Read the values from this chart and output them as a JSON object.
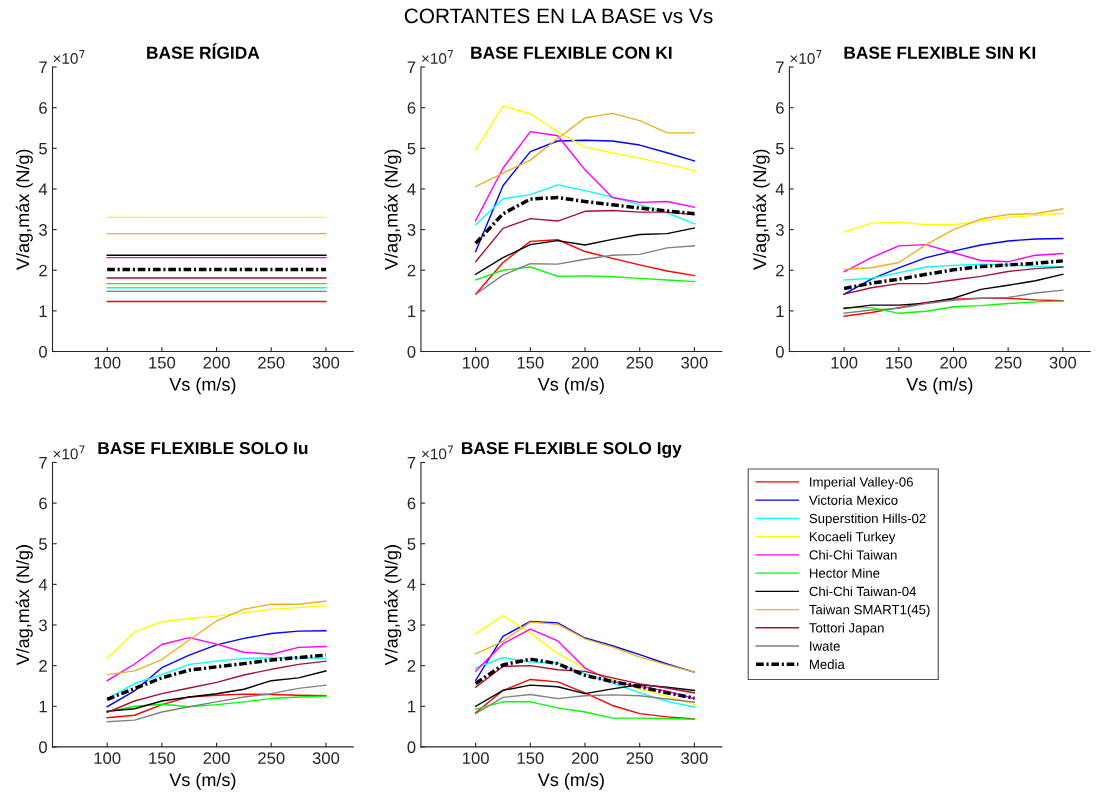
{
  "chart_data": [
    {
      "type": "line",
      "title": "BASE RÍGIDA",
      "annotations": [
        "CORTANTES EN LA BASE vs Vs",
        "×10$^{7}$"
      ],
      "xlabel": "Vs (m/s)",
      "ylabel": "V/ag,máx (N/g)",
      "x": [
        100,
        125,
        150,
        175,
        200,
        225,
        250,
        275,
        300
      ],
      "xlim": [
        50,
        325
      ],
      "xticks": [
        100,
        150,
        200,
        250,
        300
      ],
      "ylim": [
        0,
        7
      ],
      "yticks": [
        0,
        1,
        2,
        3,
        4,
        5,
        6,
        7
      ],
      "grid": false,
      "legend": false,
      "series": [
        {
          "color": "#ff0000",
          "values": [
            1.23,
            1.23,
            1.23,
            1.23,
            1.23,
            1.23,
            1.23,
            1.23,
            1.23
          ]
        },
        {
          "color": "#0000ff",
          "values": [
            null,
            null,
            null,
            null,
            null,
            null,
            null,
            null,
            null
          ]
        },
        {
          "color": "#00ffff",
          "values": [
            1.57,
            1.57,
            1.57,
            1.57,
            1.57,
            1.57,
            1.57,
            1.57,
            1.57
          ]
        },
        {
          "color": "#ffff00",
          "values": [
            3.3,
            3.3,
            3.3,
            3.3,
            3.3,
            3.3,
            3.3,
            3.3,
            3.3
          ]
        },
        {
          "color": "#ff00ff",
          "values": [
            2.31,
            2.31,
            2.31,
            2.31,
            2.31,
            2.31,
            2.31,
            2.31,
            2.31
          ]
        },
        {
          "color": "#00ff00",
          "values": [
            1.67,
            1.67,
            1.67,
            1.67,
            1.67,
            1.67,
            1.67,
            1.67,
            1.67
          ]
        },
        {
          "color": "#000000",
          "values": [
            2.37,
            2.37,
            2.37,
            2.37,
            2.37,
            2.37,
            2.37,
            2.37,
            2.37
          ]
        },
        {
          "color": "#edb120",
          "values": [
            2.9,
            2.9,
            2.9,
            2.9,
            2.9,
            2.9,
            2.9,
            2.9,
            2.9
          ]
        },
        {
          "color": "#a2142f",
          "values": [
            1.81,
            1.81,
            1.81,
            1.81,
            1.81,
            1.81,
            1.81,
            1.81,
            1.81
          ]
        },
        {
          "color": "#808080",
          "values": [
            1.48,
            1.48,
            1.48,
            1.48,
            1.48,
            1.48,
            1.48,
            1.48,
            1.48
          ]
        },
        {
          "color": "#000000",
          "line_style": "dashdot",
          "values": [
            2.02,
            2.02,
            2.02,
            2.02,
            2.02,
            2.02,
            2.02,
            2.02,
            2.02
          ]
        }
      ]
    },
    {
      "type": "line",
      "title": "BASE FLEXIBLE CON KI",
      "annotations": [
        "×10$^{7}$"
      ],
      "xlabel": "Vs (m/s)",
      "ylabel": "V/ag,máx (N/g)",
      "x": [
        100,
        125,
        150,
        175,
        200,
        225,
        250,
        275,
        300
      ],
      "xlim": [
        50,
        325
      ],
      "xticks": [
        100,
        150,
        200,
        250,
        300
      ],
      "ylim": [
        0,
        7
      ],
      "yticks": [
        0,
        1,
        2,
        3,
        4,
        5,
        6,
        7
      ],
      "grid": false,
      "legend": false,
      "series": [
        {
          "color": "#ff0000",
          "values": [
            1.41,
            2.19,
            2.71,
            2.75,
            2.46,
            2.29,
            2.13,
            1.98,
            1.87
          ]
        },
        {
          "color": "#0000ff",
          "values": [
            2.46,
            4.08,
            4.92,
            5.18,
            5.2,
            5.18,
            5.08,
            4.89,
            4.69
          ]
        },
        {
          "color": "#00ffff",
          "values": [
            3.12,
            3.76,
            3.86,
            4.1,
            3.96,
            3.8,
            3.61,
            3.41,
            3.14
          ]
        },
        {
          "color": "#ffff00",
          "values": [
            4.96,
            6.04,
            5.85,
            5.41,
            5.03,
            4.89,
            4.76,
            4.61,
            4.45
          ]
        },
        {
          "color": "#ff00ff",
          "values": [
            3.22,
            4.51,
            5.41,
            5.31,
            4.47,
            3.79,
            3.67,
            3.69,
            3.55
          ]
        },
        {
          "color": "#00ff00",
          "values": [
            1.76,
            2.0,
            2.08,
            1.85,
            1.86,
            1.84,
            1.8,
            1.76,
            1.72
          ]
        },
        {
          "color": "#000000",
          "values": [
            1.9,
            2.31,
            2.63,
            2.73,
            2.62,
            2.76,
            2.88,
            2.9,
            3.04
          ]
        },
        {
          "color": "#edb120",
          "values": [
            4.06,
            4.39,
            4.71,
            5.24,
            5.75,
            5.86,
            5.68,
            5.38,
            5.38
          ]
        },
        {
          "color": "#a2142f",
          "values": [
            2.21,
            3.03,
            3.27,
            3.21,
            3.45,
            3.47,
            3.43,
            3.43,
            3.37
          ]
        },
        {
          "color": "#808080",
          "values": [
            1.41,
            1.88,
            2.16,
            2.15,
            2.27,
            2.37,
            2.39,
            2.55,
            2.6
          ]
        },
        {
          "color": "#000000",
          "line_style": "dashdot",
          "values": [
            2.66,
            3.39,
            3.75,
            3.79,
            3.69,
            3.61,
            3.53,
            3.46,
            3.39
          ]
        }
      ]
    },
    {
      "type": "line",
      "title": "BASE FLEXIBLE SIN KI",
      "annotations": [
        "×10$^{7}$"
      ],
      "xlabel": "Vs (m/s)",
      "ylabel": "V/ag,máx (N/g)",
      "x": [
        100,
        125,
        150,
        175,
        200,
        225,
        250,
        275,
        300
      ],
      "xlim": [
        50,
        325
      ],
      "xticks": [
        100,
        150,
        200,
        250,
        300
      ],
      "ylim": [
        0,
        7
      ],
      "yticks": [
        0,
        1,
        2,
        3,
        4,
        5,
        6,
        7
      ],
      "grid": false,
      "legend": false,
      "series": [
        {
          "color": "#ff0000",
          "values": [
            0.87,
            0.96,
            1.08,
            1.21,
            1.29,
            1.31,
            1.31,
            1.27,
            1.25
          ]
        },
        {
          "color": "#0000ff",
          "values": [
            1.41,
            1.78,
            2.06,
            2.31,
            2.47,
            2.62,
            2.72,
            2.77,
            2.78
          ]
        },
        {
          "color": "#00ffff",
          "values": [
            1.76,
            1.8,
            1.94,
            2.08,
            2.12,
            2.15,
            2.13,
            2.1,
            2.09
          ]
        },
        {
          "color": "#ffff00",
          "values": [
            2.94,
            3.16,
            3.18,
            3.12,
            3.12,
            3.21,
            3.3,
            3.35,
            3.4
          ]
        },
        {
          "color": "#ff00ff",
          "values": [
            1.96,
            2.31,
            2.6,
            2.63,
            2.43,
            2.24,
            2.21,
            2.37,
            2.41
          ]
        },
        {
          "color": "#00ff00",
          "values": [
            1.08,
            1.08,
            0.94,
            0.99,
            1.1,
            1.13,
            1.18,
            1.22,
            1.24
          ]
        },
        {
          "color": "#000000",
          "values": [
            1.06,
            1.14,
            1.14,
            1.19,
            1.31,
            1.53,
            1.63,
            1.74,
            1.9
          ]
        },
        {
          "color": "#edb120",
          "values": [
            2.02,
            2.06,
            2.19,
            2.63,
            3.0,
            3.26,
            3.37,
            3.39,
            3.51
          ]
        },
        {
          "color": "#a2142f",
          "values": [
            1.41,
            1.57,
            1.67,
            1.67,
            1.76,
            1.85,
            1.97,
            2.04,
            2.08
          ]
        },
        {
          "color": "#808080",
          "values": [
            0.94,
            1.02,
            1.06,
            1.18,
            1.26,
            1.31,
            1.33,
            1.44,
            1.51
          ]
        },
        {
          "color": "#000000",
          "line_style": "dashdot",
          "values": [
            1.55,
            1.68,
            1.78,
            1.9,
            2.01,
            2.09,
            2.13,
            2.17,
            2.23
          ]
        }
      ]
    },
    {
      "type": "line",
      "title": "BASE FLEXIBLE SOLO Iu",
      "annotations": [
        "×10$^{7}$"
      ],
      "xlabel": "Vs (m/s)",
      "ylabel": "V/ag,máx (N/g)",
      "x": [
        100,
        125,
        150,
        175,
        200,
        225,
        250,
        275,
        300
      ],
      "xlim": [
        50,
        325
      ],
      "xticks": [
        100,
        150,
        200,
        250,
        300
      ],
      "ylim": [
        0,
        7
      ],
      "yticks": [
        0,
        1,
        2,
        3,
        4,
        5,
        6,
        7
      ],
      "grid": false,
      "legend": false,
      "series": [
        {
          "color": "#ff0000",
          "values": [
            0.72,
            0.78,
            1.04,
            1.23,
            1.27,
            1.3,
            1.29,
            1.27,
            1.26
          ]
        },
        {
          "color": "#0000ff",
          "values": [
            0.99,
            1.38,
            1.95,
            2.26,
            2.51,
            2.67,
            2.79,
            2.85,
            2.86
          ]
        },
        {
          "color": "#00ffff",
          "values": [
            1.19,
            1.56,
            1.78,
            2.03,
            2.11,
            2.18,
            2.19,
            2.2,
            2.18
          ]
        },
        {
          "color": "#ffff00",
          "values": [
            2.18,
            2.83,
            3.08,
            3.16,
            3.22,
            3.3,
            3.39,
            3.43,
            3.47
          ]
        },
        {
          "color": "#ff00ff",
          "values": [
            1.63,
            2.04,
            2.52,
            2.69,
            2.53,
            2.33,
            2.28,
            2.45,
            2.47
          ]
        },
        {
          "color": "#00ff00",
          "values": [
            0.86,
            1.0,
            1.05,
            0.99,
            1.04,
            1.11,
            1.19,
            1.23,
            1.25
          ]
        },
        {
          "color": "#000000",
          "values": [
            0.88,
            0.94,
            1.13,
            1.23,
            1.31,
            1.42,
            1.63,
            1.7,
            1.87
          ]
        },
        {
          "color": "#edb120",
          "values": [
            1.78,
            1.87,
            2.15,
            2.63,
            3.1,
            3.39,
            3.51,
            3.51,
            3.59
          ]
        },
        {
          "color": "#a2142f",
          "values": [
            0.85,
            1.13,
            1.31,
            1.45,
            1.59,
            1.77,
            1.91,
            2.03,
            2.11
          ]
        },
        {
          "color": "#808080",
          "values": [
            0.62,
            0.66,
            0.86,
            0.99,
            1.11,
            1.23,
            1.31,
            1.44,
            1.52
          ]
        },
        {
          "color": "#000000",
          "line_style": "dashdot",
          "values": [
            1.17,
            1.44,
            1.7,
            1.89,
            1.97,
            2.05,
            2.14,
            2.2,
            2.26
          ]
        }
      ]
    },
    {
      "type": "line",
      "title": "BASE FLEXIBLE SOLO Igy",
      "annotations": [
        "×10$^{7}$"
      ],
      "xlabel": "Vs (m/s)",
      "ylabel": "V/ag,máx (N/g)",
      "x": [
        100,
        125,
        150,
        175,
        200,
        225,
        250,
        275,
        300
      ],
      "xlim": [
        50,
        325
      ],
      "xticks": [
        100,
        150,
        200,
        250,
        300
      ],
      "ylim": [
        0,
        7
      ],
      "yticks": [
        0,
        1,
        2,
        3,
        4,
        5,
        6,
        7
      ],
      "grid": false,
      "legend": "right",
      "series": [
        {
          "name": "Imperial Valley-06",
          "color": "#ff0000",
          "values": [
            0.84,
            1.39,
            1.66,
            1.6,
            1.33,
            1.02,
            0.82,
            0.74,
            0.69
          ]
        },
        {
          "name": "Victoria Mexico",
          "color": "#0000ff",
          "values": [
            1.64,
            2.72,
            3.09,
            3.05,
            2.68,
            2.49,
            2.27,
            2.04,
            1.84
          ]
        },
        {
          "name": "Superstition Hills-02",
          "color": "#00ffff",
          "values": [
            1.94,
            2.2,
            2.09,
            2.07,
            1.8,
            1.57,
            1.33,
            1.12,
            0.98
          ]
        },
        {
          "name": "Kocaeli Turkey",
          "color": "#ffff00",
          "values": [
            2.78,
            3.23,
            2.8,
            2.3,
            1.92,
            1.66,
            1.43,
            1.25,
            1.04
          ]
        },
        {
          "name": "Chi-Chi Taiwan",
          "color": "#ff00ff",
          "values": [
            1.86,
            2.54,
            2.9,
            2.61,
            1.94,
            1.61,
            1.49,
            1.37,
            1.19
          ]
        },
        {
          "name": "Hector Mine",
          "color": "#00ff00",
          "values": [
            0.93,
            1.11,
            1.11,
            0.96,
            0.86,
            0.71,
            0.71,
            0.7,
            0.68
          ]
        },
        {
          "name": "Chi-Chi Taiwan-04",
          "color": "#000000",
          "values": [
            1.0,
            1.39,
            1.52,
            1.48,
            1.31,
            1.43,
            1.53,
            1.47,
            1.39
          ]
        },
        {
          "name": "Taiwan SMART1(45)",
          "color": "#edb120",
          "values": [
            2.29,
            2.6,
            3.07,
            3.02,
            2.66,
            2.46,
            2.21,
            2.02,
            1.84
          ]
        },
        {
          "name": "Tottori Japan",
          "color": "#a2142f",
          "values": [
            1.47,
            1.98,
            2.0,
            1.9,
            1.86,
            1.7,
            1.55,
            1.45,
            1.33
          ]
        },
        {
          "name": "Iwate",
          "color": "#808080",
          "values": [
            0.82,
            1.22,
            1.29,
            1.19,
            1.26,
            1.28,
            1.26,
            1.18,
            1.1
          ]
        },
        {
          "name": "Media",
          "color": "#000000",
          "line_style": "dashdot",
          "values": [
            1.56,
            2.02,
            2.16,
            2.05,
            1.76,
            1.61,
            1.48,
            1.33,
            1.2
          ]
        }
      ]
    }
  ]
}
